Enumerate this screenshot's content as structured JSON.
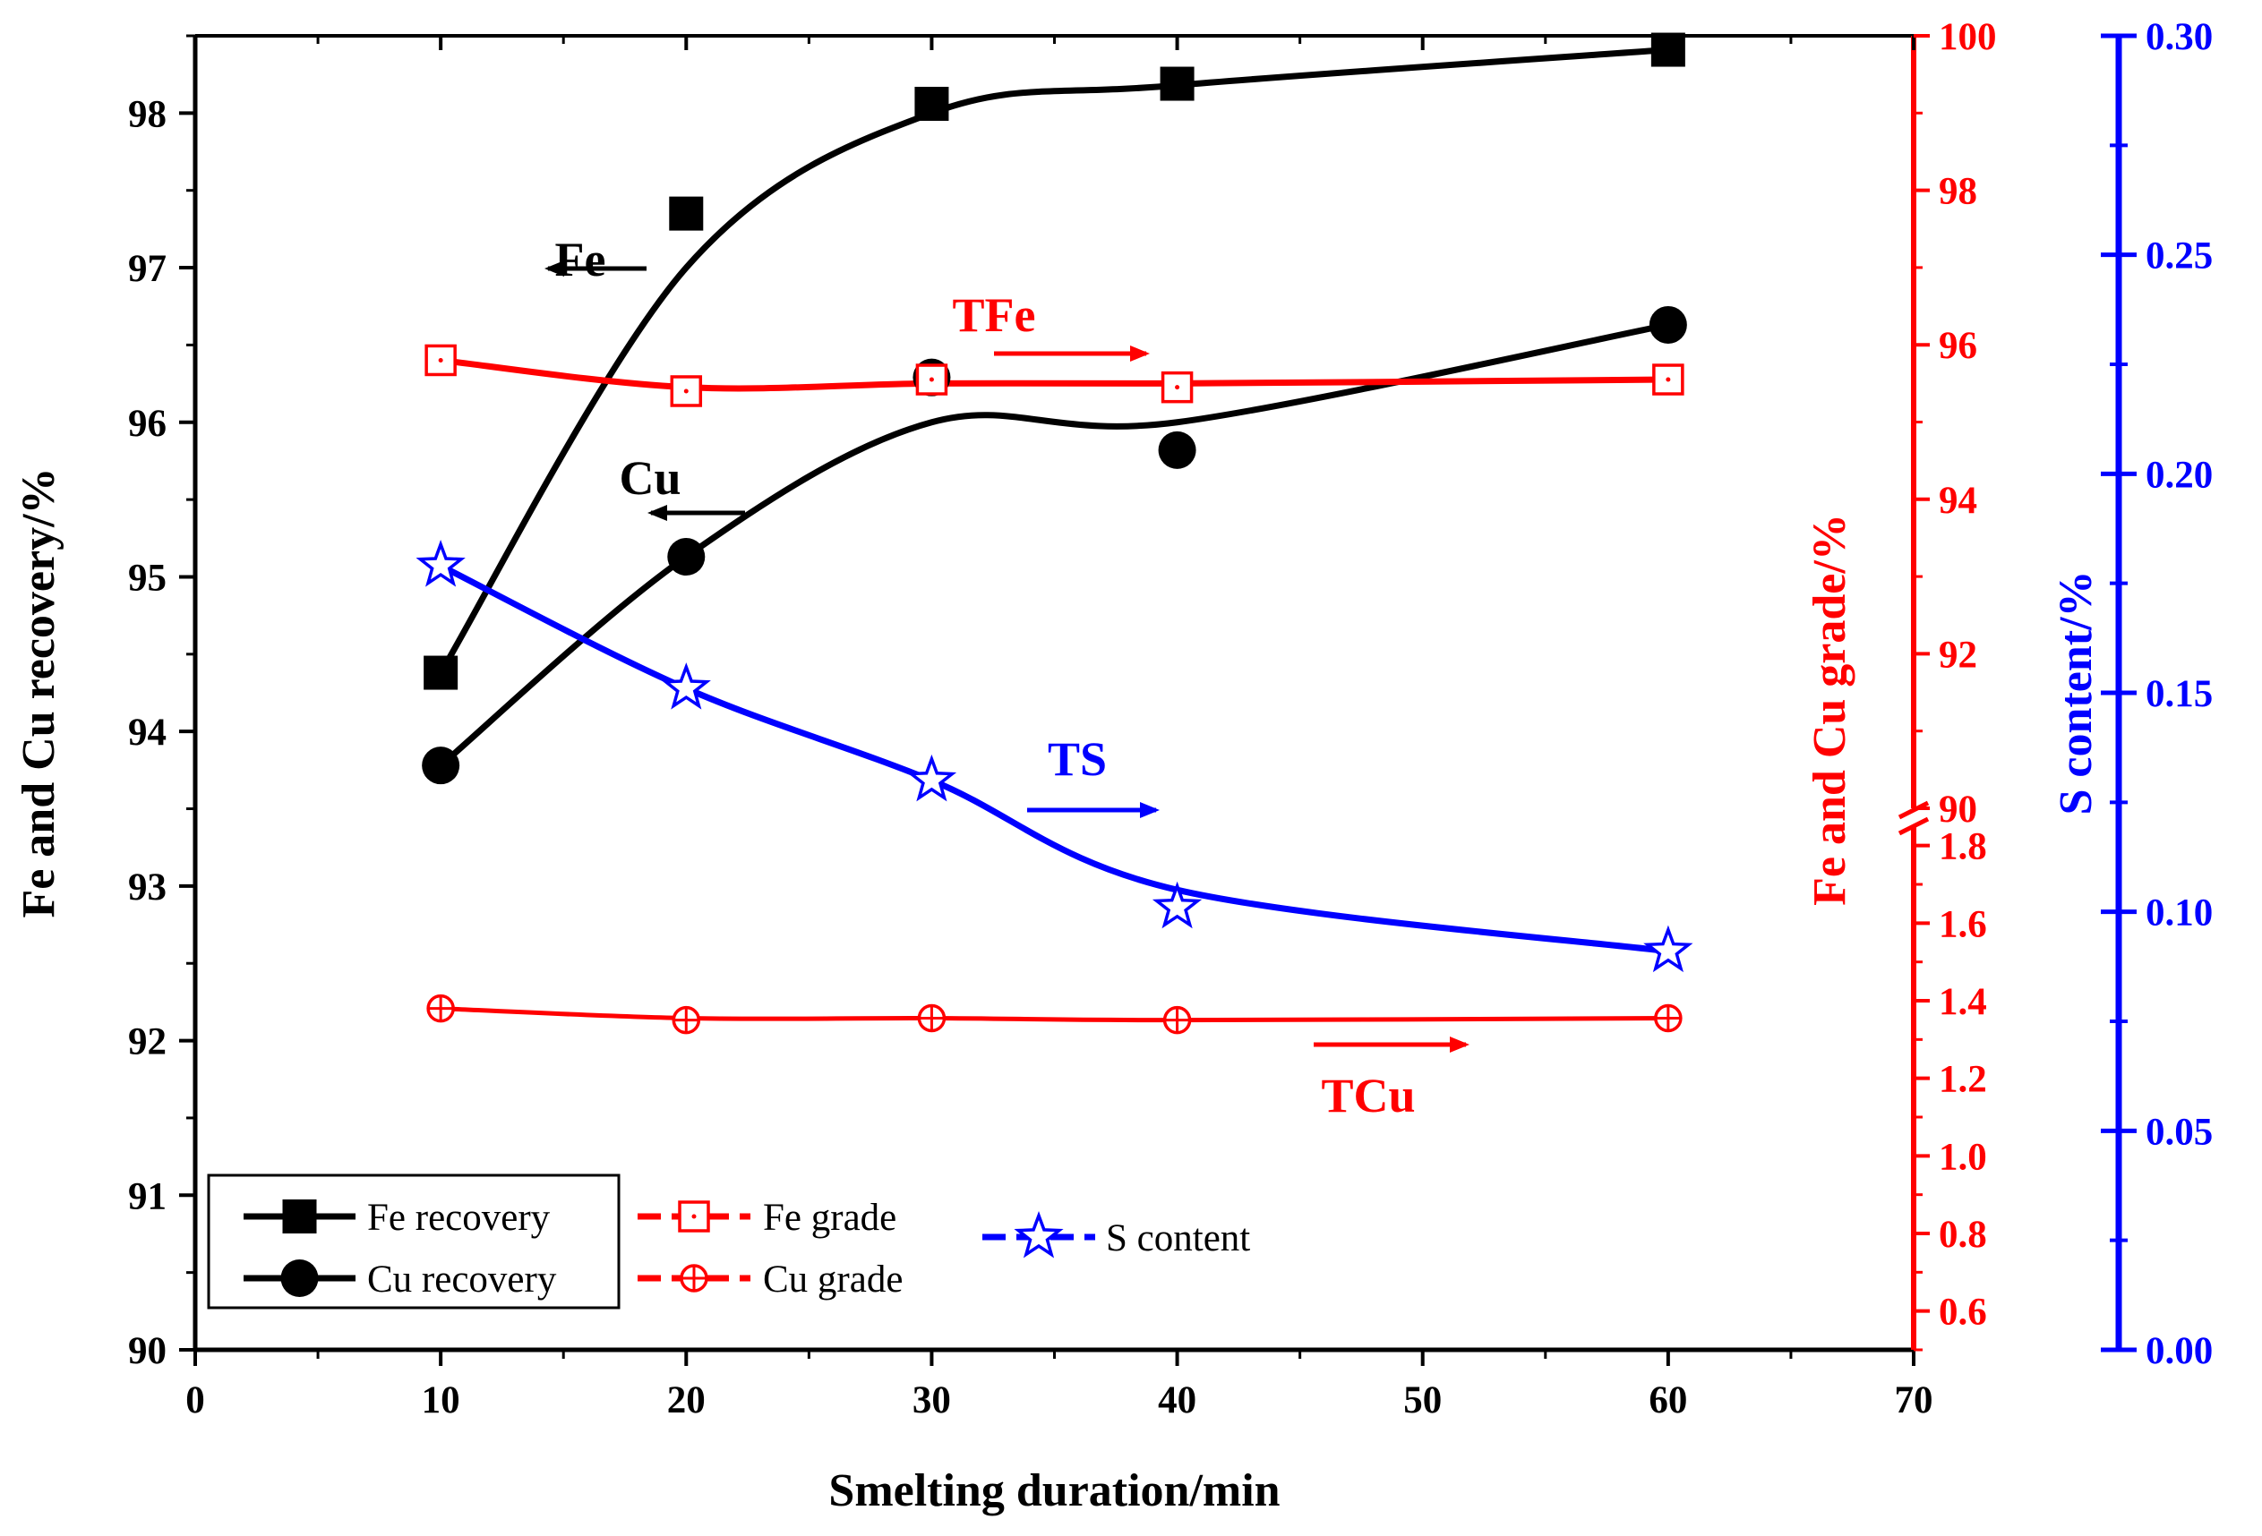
{
  "chart_data": {
    "type": "line",
    "xlabel": "Smelting duration/min",
    "ylabel_left": "Fe and Cu recovery/%",
    "ylabel_right_red": "Fe and Cu grade/%",
    "ylabel_right_blue": "S content/%",
    "x_range": [
      0,
      70
    ],
    "x_ticks": [
      0,
      10,
      20,
      30,
      40,
      50,
      60,
      70
    ],
    "left_range": [
      90,
      98.5
    ],
    "left_ticks": [
      90,
      91,
      92,
      93,
      94,
      95,
      96,
      97,
      98
    ],
    "grade_upper_range": [
      90,
      100
    ],
    "grade_upper_ticks": [
      90,
      92,
      94,
      96,
      98,
      100
    ],
    "grade_lower_range": [
      0.5,
      1.85
    ],
    "grade_lower_ticks": [
      0.6,
      0.8,
      1.0,
      1.2,
      1.4,
      1.6,
      1.8
    ],
    "s_range": [
      0,
      0.3
    ],
    "s_ticks": [
      "0.00",
      "0.05",
      "0.10",
      "0.15",
      "0.20",
      "0.25",
      "0.30"
    ],
    "x": [
      10,
      20,
      30,
      40,
      60
    ],
    "series": [
      {
        "name": "Fe recovery",
        "axis": "left",
        "marker": "filled-square",
        "color": "#000000",
        "values": [
          94.38,
          97.35,
          98.06,
          98.19,
          98.41
        ]
      },
      {
        "name": "Cu recovery",
        "axis": "left",
        "marker": "filled-circle",
        "color": "#000000",
        "values": [
          93.78,
          95.13,
          96.29,
          95.82,
          96.63
        ]
      },
      {
        "name": "Fe grade",
        "axis": "grade_upper",
        "marker": "open-square-dot",
        "color": "#ff0000",
        "values": [
          95.8,
          95.4,
          95.55,
          95.45,
          95.55
        ]
      },
      {
        "name": "Cu grade",
        "axis": "grade_lower",
        "marker": "circle-plus",
        "color": "#ff0000",
        "values": [
          1.38,
          1.35,
          1.355,
          1.35,
          1.355
        ]
      },
      {
        "name": "S content",
        "axis": "s",
        "marker": "open-star",
        "color": "#0000ff",
        "values": [
          0.179,
          0.151,
          0.13,
          0.101,
          0.091
        ]
      }
    ],
    "annotations": [
      {
        "text": "Fe",
        "color": "#000000",
        "arrow": "left"
      },
      {
        "text": "Cu",
        "color": "#000000",
        "arrow": "left"
      },
      {
        "text": "TFe",
        "color": "#ff0000",
        "arrow": "right"
      },
      {
        "text": "TS",
        "color": "#0000ff",
        "arrow": "right"
      },
      {
        "text": "TCu",
        "color": "#ff0000",
        "arrow": "right"
      }
    ],
    "legend": [
      {
        "label": "Fe recovery"
      },
      {
        "label": "Cu recovery"
      },
      {
        "label": "Fe grade"
      },
      {
        "label": "Cu grade"
      },
      {
        "label": "S content"
      }
    ],
    "legend_position": "bottom-left"
  }
}
